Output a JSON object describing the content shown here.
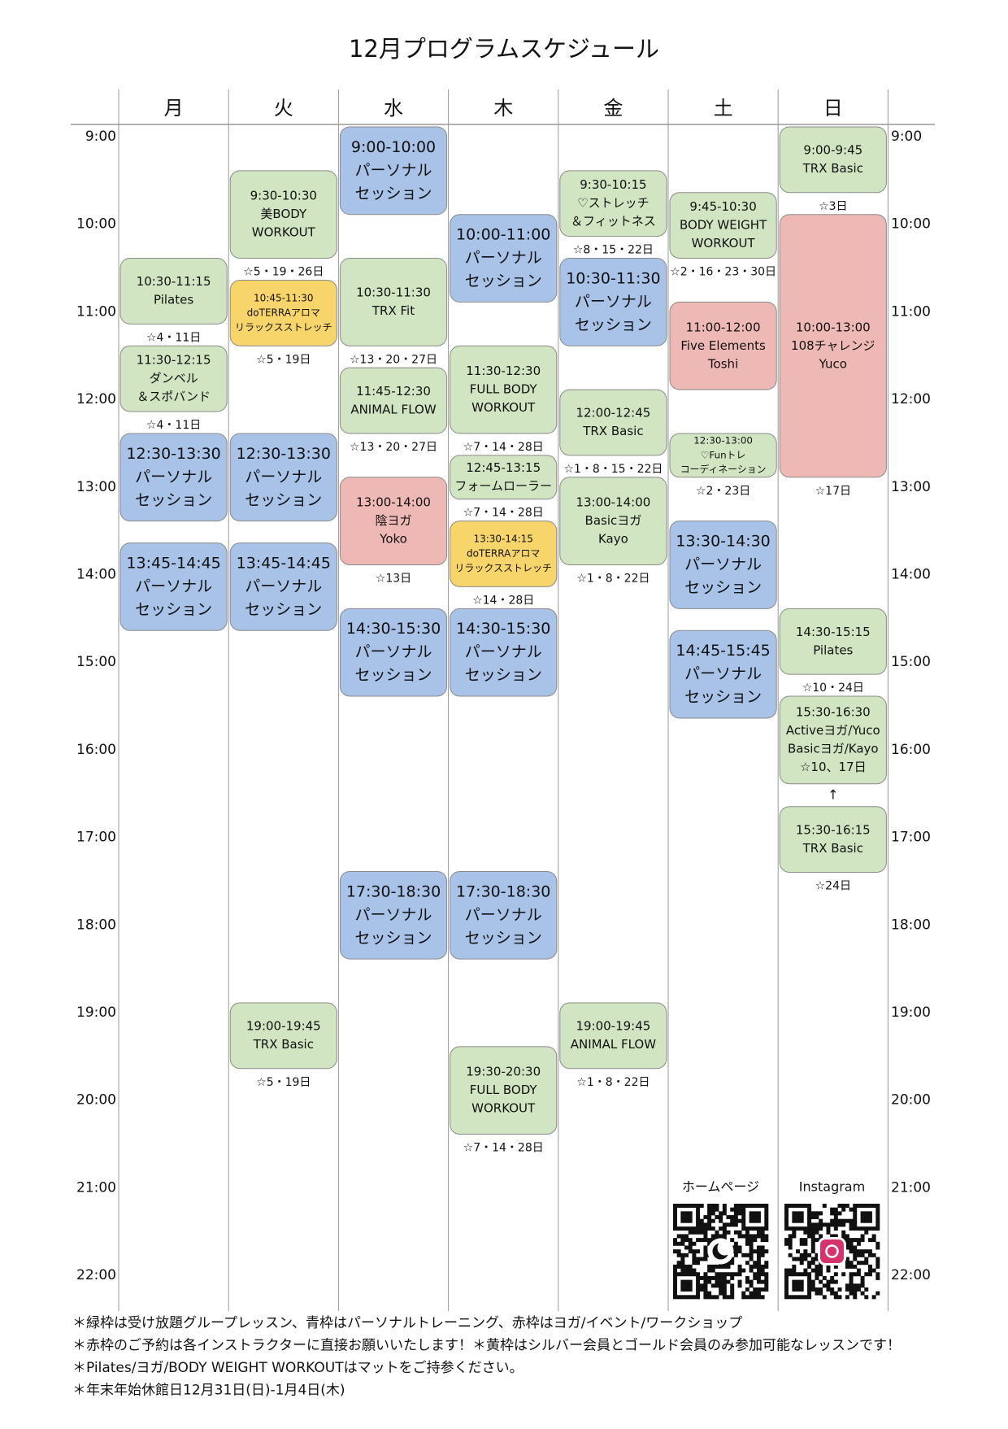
{
  "title": "12月プログラムスケジュール",
  "times": [
    "9:00",
    "10:00",
    "11:00",
    "12:00",
    "13:00",
    "14:00",
    "15:00",
    "16:00",
    "17:00",
    "18:00",
    "19:00",
    "20:00",
    "21:00",
    "22:00"
  ],
  "colors": {
    "green": "#d2e5c2",
    "blue": "#a9c2e7",
    "red": "#eeb8b5",
    "yellow": "#f7d56a"
  },
  "days": [
    {
      "name": "月",
      "events": [
        {
          "lines": [
            "10:30-11:15",
            "Pilates"
          ],
          "note": "☆4・11日",
          "color": "green"
        },
        {
          "lines": [
            "11:30-12:15",
            "ダンベル",
            "＆スポバンド"
          ],
          "note": "☆4・11日",
          "color": "green"
        },
        {
          "lines": [
            "12:30-13:30",
            "パーソナル",
            "セッション"
          ],
          "color": "blue"
        },
        {
          "lines": [
            "13:45-14:45",
            "パーソナル",
            "セッション"
          ],
          "color": "blue"
        }
      ]
    },
    {
      "name": "火",
      "events": [
        {
          "lines": [
            "9:30-10:30",
            "美BODY",
            "WORKOUT"
          ],
          "note": "☆5・19・26日",
          "color": "green"
        },
        {
          "lines": [
            "10:45-11:30",
            "doTERRAアロマ",
            "リラックスストレッチ"
          ],
          "note": "☆5・19日",
          "color": "yellow"
        },
        {
          "lines": [
            "12:30-13:30",
            "パーソナル",
            "セッション"
          ],
          "color": "blue"
        },
        {
          "lines": [
            "13:45-14:45",
            "パーソナル",
            "セッション"
          ],
          "color": "blue"
        },
        {
          "lines": [
            "19:00-19:45",
            "TRX Basic"
          ],
          "note": "☆5・19日",
          "color": "green"
        }
      ]
    },
    {
      "name": "水",
      "events": [
        {
          "lines": [
            "9:00-10:00",
            "パーソナル",
            "セッション"
          ],
          "color": "blue"
        },
        {
          "lines": [
            "10:30-11:30",
            "TRX Fit"
          ],
          "note": "☆13・20・27日",
          "color": "green"
        },
        {
          "lines": [
            "11:45-12:30",
            "ANIMAL FLOW"
          ],
          "note": "☆13・20・27日",
          "color": "green"
        },
        {
          "lines": [
            "13:00-14:00",
            "陰ヨガ",
            "Yoko"
          ],
          "note": "☆13日",
          "color": "red"
        },
        {
          "lines": [
            "14:30-15:30",
            "パーソナル",
            "セッション"
          ],
          "color": "blue"
        },
        {
          "lines": [
            "17:30-18:30",
            "パーソナル",
            "セッション"
          ],
          "color": "blue"
        }
      ]
    },
    {
      "name": "木",
      "events": [
        {
          "lines": [
            "10:00-11:00",
            "パーソナル",
            "セッション"
          ],
          "color": "blue"
        },
        {
          "lines": [
            "11:30-12:30",
            "FULL BODY",
            "WORKOUT"
          ],
          "note": "☆7・14・28日",
          "color": "green"
        },
        {
          "lines": [
            "12:45-13:15",
            "フォームローラー"
          ],
          "note": "☆7・14・28日",
          "color": "green"
        },
        {
          "lines": [
            "13:30-14:15",
            "doTERRAアロマ",
            "リラックスストレッチ"
          ],
          "note": "☆14・28日",
          "color": "yellow"
        },
        {
          "lines": [
            "14:30-15:30",
            "パーソナル",
            "セッション"
          ],
          "color": "blue"
        },
        {
          "lines": [
            "17:30-18:30",
            "パーソナル",
            "セッション"
          ],
          "color": "blue"
        },
        {
          "lines": [
            "19:30-20:30",
            "FULL BODY",
            "WORKOUT"
          ],
          "note": "☆7・14・28日",
          "color": "green"
        }
      ]
    },
    {
      "name": "金",
      "events": [
        {
          "lines": [
            "9:30-10:15",
            "♡ストレッチ",
            "＆フィットネス"
          ],
          "note": "☆8・15・22日",
          "color": "green"
        },
        {
          "lines": [
            "10:30-11:30",
            "パーソナル",
            "セッション"
          ],
          "color": "blue"
        },
        {
          "lines": [
            "12:00-12:45",
            "TRX Basic"
          ],
          "note": "☆1・8・15・22日",
          "color": "green"
        },
        {
          "lines": [
            "13:00-14:00",
            "Basicヨガ",
            "Kayo"
          ],
          "note": "☆1・8・22日",
          "color": "green"
        },
        {
          "lines": [
            "19:00-19:45",
            "ANIMAL FLOW"
          ],
          "note": "☆1・8・22日",
          "color": "green"
        }
      ]
    },
    {
      "name": "土",
      "events": [
        {
          "lines": [
            "9:45-10:30",
            "BODY WEIGHT",
            "WORKOUT"
          ],
          "note": "☆2・16・23・30日",
          "color": "green"
        },
        {
          "lines": [
            "11:00-12:00",
            "Five Elements",
            "Toshi"
          ],
          "color": "red"
        },
        {
          "lines": [
            "12:30-13:00",
            "♡Funトレ",
            "コーディネーション"
          ],
          "note": "☆2・23日",
          "color": "green"
        },
        {
          "lines": [
            "13:30-14:30",
            "パーソナル",
            "セッション"
          ],
          "color": "blue"
        },
        {
          "lines": [
            "14:45-15:45",
            "パーソナル",
            "セッション"
          ],
          "color": "blue"
        }
      ]
    },
    {
      "name": "日",
      "events": [
        {
          "lines": [
            "9:00-9:45",
            "TRX Basic"
          ],
          "note": "☆3日",
          "color": "green"
        },
        {
          "lines": [
            "10:00-13:00",
            "108チャレンジ",
            "Yuco"
          ],
          "note": "☆17日",
          "color": "red"
        },
        {
          "lines": [
            "14:30-15:15",
            "Pilates"
          ],
          "note": "☆10・24日",
          "color": "green"
        },
        {
          "lines": [
            "15:30-16:30",
            "Activeヨガ/Yuco",
            "Basicヨガ/Kayo",
            "☆10、17日"
          ],
          "color": "green"
        },
        {
          "lines": [
            "15:30-16:15",
            "TRX Basic"
          ],
          "note": "☆24日",
          "color": "green"
        }
      ]
    }
  ],
  "qr": [
    {
      "label": "ホームページ"
    },
    {
      "label": "Instagram"
    }
  ],
  "footer": [
    "＊緑枠は受け放題グループレッスン、青枠はパーソナルトレーニング、赤枠はヨガ/イベント/ワークショップ",
    "＊赤枠のご予約は各インストラクターに直接お願いいたします！＊黄枠はシルバー会員とゴールド会員のみ参加可能なレッスンです！",
    "＊Pilates/ヨガ/BODY WEIGHT WORKOUTはマットをご持参ください。",
    "＊年末年始休館日12月31日(日)-1月4日(木)"
  ]
}
